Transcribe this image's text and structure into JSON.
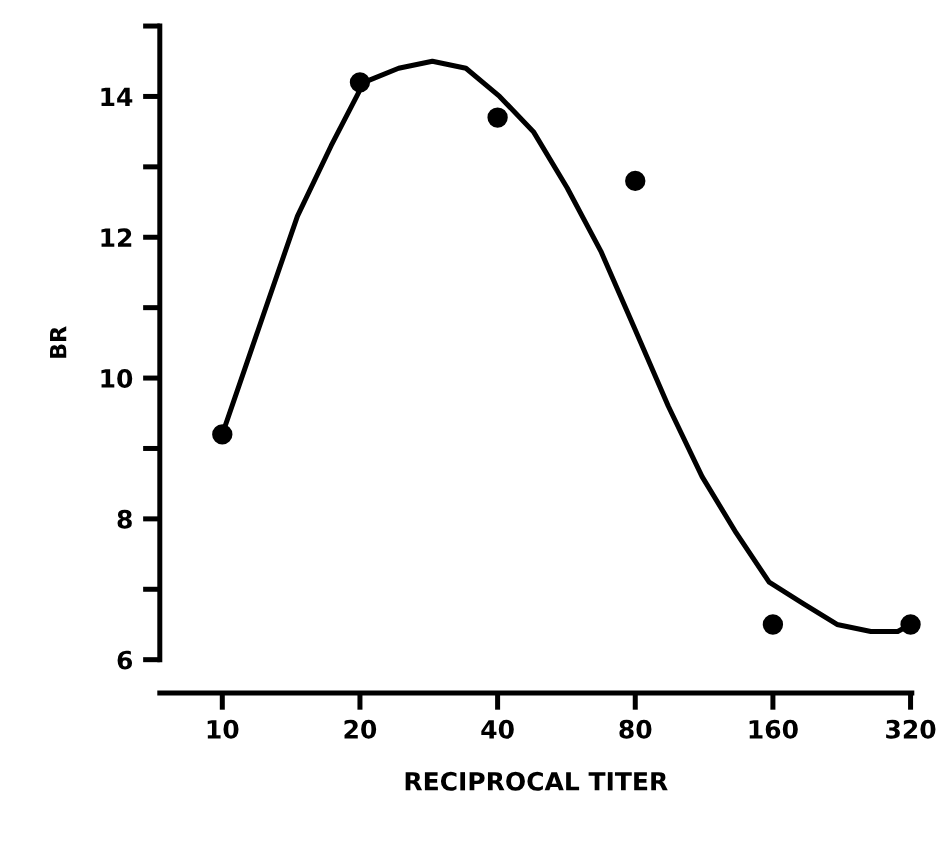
{
  "chart_data": {
    "type": "scatter",
    "xlabel": "RECIPROCAL TITER",
    "ylabel": "BR",
    "log": "x",
    "grid": false,
    "marker": "circle",
    "x": [
      10,
      20,
      40,
      80,
      160,
      320
    ],
    "series": [
      {
        "color": "#000000",
        "values": [
          9.2,
          14.2,
          13.7,
          12.8,
          6.5,
          6.5
        ]
      },
      {
        "type": "line",
        "color": "#000000",
        "marker": "none",
        "line_style": "solid",
        "x": [
          10,
          12.3,
          14.6,
          17.3,
          20.4,
          24.3,
          28.8,
          34.1,
          40.4,
          47.9,
          56.8,
          67.3,
          79.8,
          94.5,
          112,
          133,
          157,
          186,
          221,
          262,
          300,
          320
        ],
        "values": [
          9.2,
          10.9,
          12.3,
          13.3,
          14.2,
          14.4,
          14.5,
          14.4,
          14.0,
          13.5,
          12.7,
          11.8,
          10.7,
          9.6,
          8.6,
          7.8,
          7.1,
          6.8,
          6.5,
          6.4,
          6.4,
          6.5
        ]
      }
    ],
    "xlim": [
      7.3,
      322
    ],
    "xticks": [
      10,
      20,
      40,
      80,
      160,
      320
    ],
    "ylim": [
      6,
      15
    ],
    "yticks": [
      6,
      {
        "value": 7,
        "label": null
      },
      8,
      {
        "value": 9,
        "label": null
      },
      10,
      {
        "value": 11,
        "label": null
      },
      12,
      {
        "value": 13,
        "label": null
      },
      14,
      {
        "value": 15,
        "label": null
      }
    ]
  }
}
